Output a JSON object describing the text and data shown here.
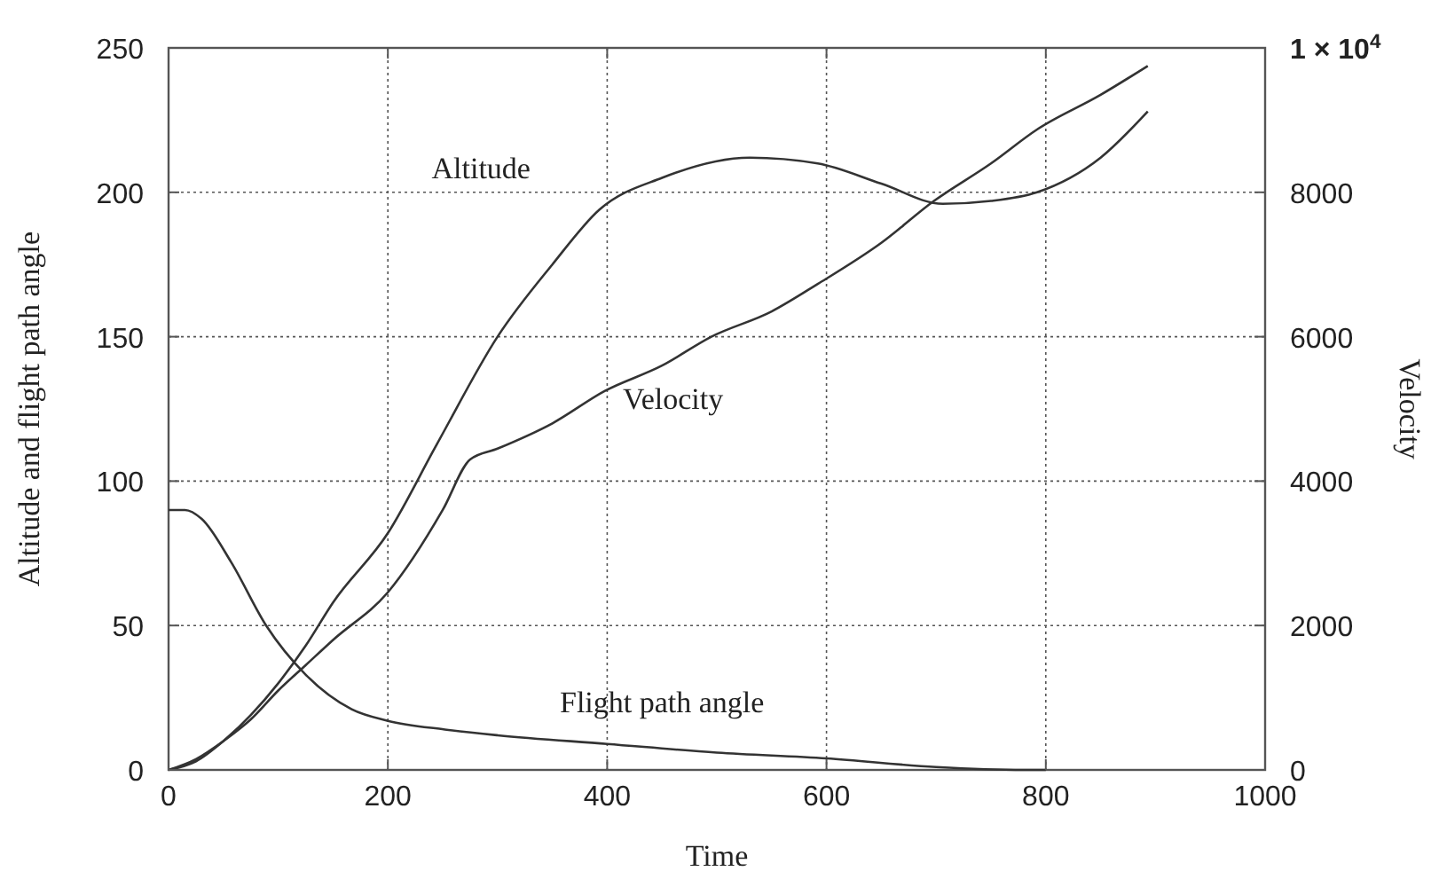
{
  "chart_data": {
    "type": "line",
    "xlabel": "Time",
    "ylabel": "Altitude and flight path angle",
    "y2label": "Velocity",
    "xlim": [
      0,
      1000
    ],
    "xticks": [
      0,
      200,
      400,
      600,
      800,
      1000
    ],
    "ylim": [
      0,
      250
    ],
    "yticks": [
      0,
      50,
      100,
      150,
      200,
      250
    ],
    "y2lim": [
      0,
      10000
    ],
    "y2ticks": [
      0,
      2000,
      4000,
      6000,
      8000,
      {
        "value": 10000,
        "label": "1 × 10$^{4}$"
      }
    ],
    "grid": true,
    "marker": "none",
    "line_style": "solid",
    "series": [
      {
        "name": "Altitude",
        "color": "#333333",
        "x": [
          0,
          25,
          50,
          75,
          100,
          125,
          150,
          200,
          245,
          300,
          350,
          393,
          450,
          530,
          592,
          650,
          706,
          750,
          792,
          850,
          893
        ],
        "values": [
          0,
          3,
          10,
          19,
          30,
          43,
          58,
          82,
          113,
          150,
          175,
          194,
          205,
          212,
          210,
          203,
          196,
          197,
          200,
          212,
          228
        ]
      },
      {
        "name": "Velocity",
        "color": "#333333",
        "axis": "y2",
        "x": [
          0,
          25,
          50,
          75,
          100,
          125,
          150,
          200,
          250,
          275,
          300,
          350,
          398,
          450,
          495,
          550,
          592,
          650,
          698,
          750,
          792,
          850,
          893
        ],
        "values": [
          0,
          150,
          400,
          700,
          1100,
          1450,
          1800,
          2460,
          3600,
          4300,
          4450,
          4800,
          5250,
          5600,
          6000,
          6350,
          6730,
          7300,
          7880,
          8400,
          8870,
          9350,
          9750
        ]
      },
      {
        "name": "Flight path angle",
        "color": "#333333",
        "x": [
          0,
          15,
          30,
          57,
          89,
          125,
          167,
          200,
          252,
          300,
          400,
          500,
          600,
          700,
          780,
          800
        ],
        "values": [
          90,
          90,
          87,
          72,
          50,
          33,
          21,
          17,
          14,
          12,
          9,
          6,
          4,
          1,
          0,
          0
        ]
      }
    ]
  }
}
